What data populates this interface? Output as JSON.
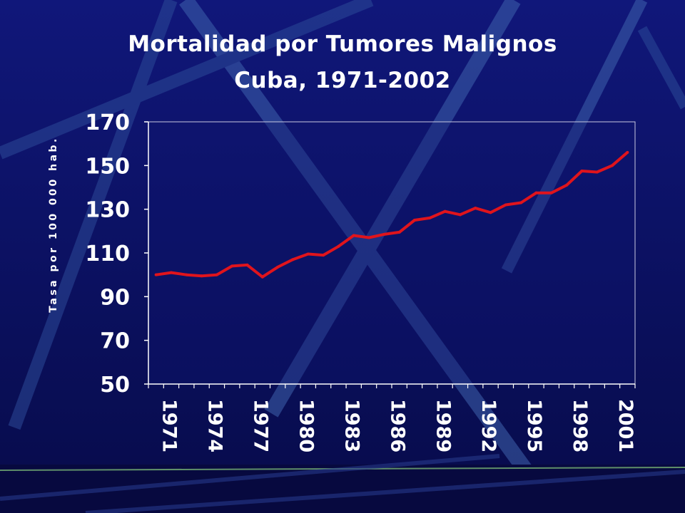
{
  "slide": {
    "title_line1": "Mortalidad por Tumores Malignos",
    "title_line2": "Cuba, 1971-2002"
  },
  "colors": {
    "background": "#0a0f5c",
    "plot_background": "#0d1470",
    "line": "#e0141c",
    "text": "#ffffff",
    "decor_stripe": "#4a6fb8"
  },
  "chart_data": {
    "type": "line",
    "title": "Mortalidad por Tumores Malignos Cuba, 1971-2002",
    "xlabel": "",
    "ylabel": "Tasa por 100 000 hab.",
    "ylim": [
      50,
      170
    ],
    "yticks": [
      170,
      150,
      130,
      110,
      90,
      70,
      50
    ],
    "xlim": [
      1971,
      2002
    ],
    "xtick_labels": [
      "1971",
      "1974",
      "1977",
      "1980",
      "1983",
      "1986",
      "1989",
      "1992",
      "1995",
      "1998",
      "2001"
    ],
    "grid": false,
    "legend": "none",
    "x": [
      1971,
      1972,
      1973,
      1974,
      1975,
      1976,
      1977,
      1978,
      1979,
      1980,
      1981,
      1982,
      1983,
      1984,
      1985,
      1986,
      1987,
      1988,
      1989,
      1990,
      1991,
      1992,
      1993,
      1994,
      1995,
      1996,
      1997,
      1998,
      1999,
      2000,
      2001,
      2002
    ],
    "series": [
      {
        "values": [
          100.0,
          101.0,
          100.0,
          99.5,
          100.0,
          104.0,
          104.5,
          99.0,
          103.5,
          107.0,
          109.5,
          109.0,
          113.0,
          118.0,
          117.0,
          118.5,
          119.5,
          125.0,
          126.0,
          129.0,
          127.5,
          130.5,
          128.5,
          132.0,
          133.0,
          137.5,
          137.5,
          141.0,
          147.5,
          147.0,
          150.0,
          156.0
        ]
      }
    ]
  }
}
